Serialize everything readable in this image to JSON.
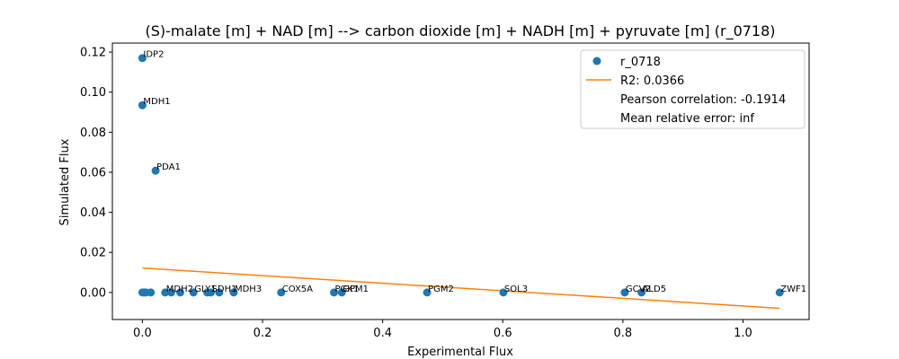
{
  "chart_data": {
    "type": "scatter",
    "title": "(S)-malate [m] + NAD [m] --> carbon dioxide [m] + NADH [m] + pyruvate [m] (r_0718)",
    "xlabel": "Experimental Flux",
    "ylabel": "Simulated Flux",
    "xlim": [
      -0.05,
      1.11
    ],
    "ylim": [
      -0.0135,
      0.1245
    ],
    "xticks": [
      0.0,
      0.2,
      0.4,
      0.6,
      0.8,
      1.0
    ],
    "xtick_labels": [
      "0.0",
      "0.2",
      "0.4",
      "0.6",
      "0.8",
      "1.0"
    ],
    "yticks": [
      0.0,
      0.02,
      0.04,
      0.06,
      0.08,
      0.1,
      0.12
    ],
    "ytick_labels": [
      "0.00",
      "0.02",
      "0.04",
      "0.06",
      "0.08",
      "0.10",
      "0.12"
    ],
    "grid": false,
    "legend_position": "top-right",
    "colors": {
      "points": "#1f77b4",
      "fit_line": "#ff7f0e"
    },
    "series": [
      {
        "name": "r_0718",
        "kind": "scatter",
        "points": [
          {
            "x": 0.0,
            "y": 0.117,
            "label": "IDP2"
          },
          {
            "x": 0.0,
            "y": 0.0935,
            "label": "MDH1"
          },
          {
            "x": 0.022,
            "y": 0.0608,
            "label": "PDA1"
          },
          {
            "x": 0.0,
            "y": 0.0,
            "label": ""
          },
          {
            "x": 0.003,
            "y": 0.0,
            "label": ""
          },
          {
            "x": 0.006,
            "y": 0.0,
            "label": ""
          },
          {
            "x": 0.014,
            "y": 0.0,
            "label": ""
          },
          {
            "x": 0.038,
            "y": 0.0,
            "label": "MDH2"
          },
          {
            "x": 0.048,
            "y": 0.0,
            "label": ""
          },
          {
            "x": 0.063,
            "y": 0.0,
            "label": ""
          },
          {
            "x": 0.085,
            "y": 0.0,
            "label": "GLY1"
          },
          {
            "x": 0.108,
            "y": 0.0,
            "label": ""
          },
          {
            "x": 0.114,
            "y": 0.0,
            "label": "SDH1"
          },
          {
            "x": 0.128,
            "y": 0.0,
            "label": ""
          },
          {
            "x": 0.152,
            "y": 0.0,
            "label": "MDH3"
          },
          {
            "x": 0.231,
            "y": 0.0,
            "label": "COX5A"
          },
          {
            "x": 0.319,
            "y": 0.0,
            "label": "PGK1"
          },
          {
            "x": 0.332,
            "y": 0.0,
            "label": "GPM1"
          },
          {
            "x": 0.474,
            "y": 0.0,
            "label": "PGM2"
          },
          {
            "x": 0.601,
            "y": 0.0,
            "label": "SOL3"
          },
          {
            "x": 0.803,
            "y": 0.0,
            "label": "GCV2"
          },
          {
            "x": 0.831,
            "y": 0.0,
            "label": "ALD5"
          },
          {
            "x": 1.061,
            "y": 0.0,
            "label": "ZWF1"
          }
        ]
      },
      {
        "name": "R2: 0.0366",
        "kind": "line",
        "x": [
          0.0,
          1.061
        ],
        "y": [
          0.0122,
          -0.0079
        ]
      }
    ],
    "legend": [
      {
        "marker": "dot",
        "text": "r_0718"
      },
      {
        "marker": "line",
        "text": "R2: 0.0366"
      },
      {
        "marker": "none",
        "text": "Pearson correlation: -0.1914"
      },
      {
        "marker": "none",
        "text": "Mean relative error: inf"
      }
    ]
  }
}
